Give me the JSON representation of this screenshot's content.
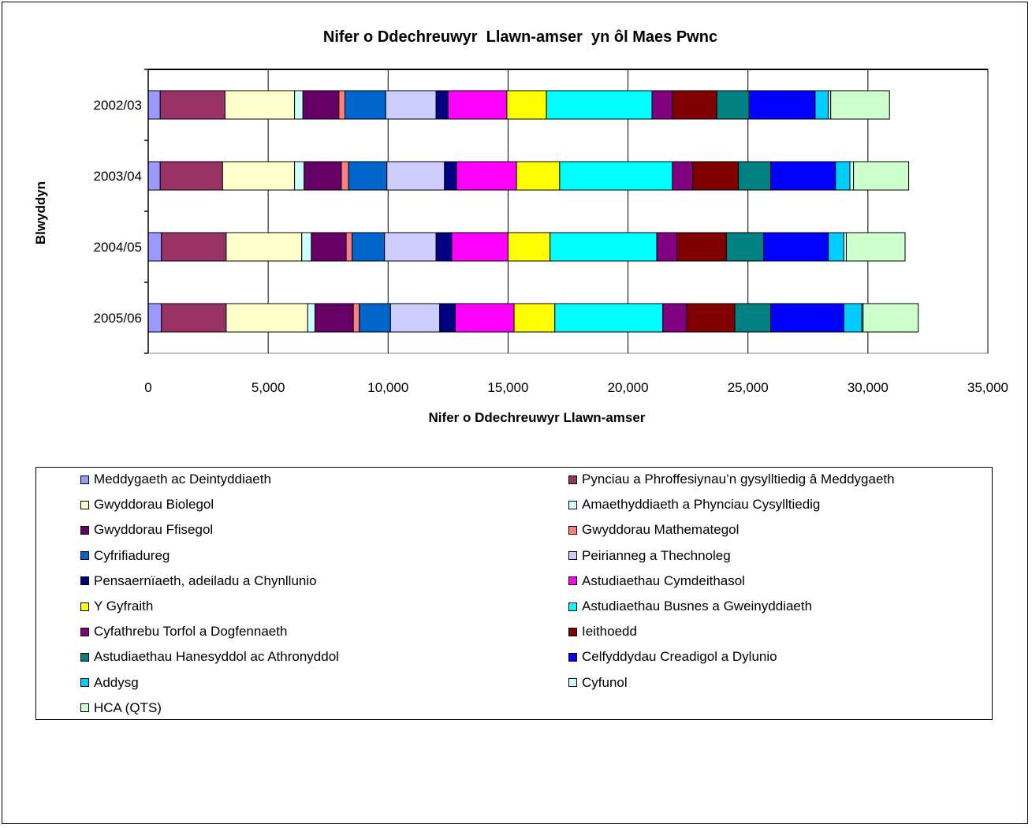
{
  "chart_data": {
    "type": "bar",
    "orientation": "horizontal",
    "stacked": true,
    "title": "Nifer o Ddechreuwyr  Llawn-amser  yn ôl Maes Pwnc",
    "xlabel": "Nifer o Ddechreuwyr Llawn-amser",
    "ylabel": "Blwyddyn",
    "xlim": [
      0,
      35000
    ],
    "xticks": [
      0,
      5000,
      10000,
      15000,
      20000,
      25000,
      30000,
      35000
    ],
    "xtick_labels": [
      "0",
      "5,000",
      "10,000",
      "15,000",
      "20,000",
      "25,000",
      "30,000",
      "35,000"
    ],
    "categories": [
      "2002/03",
      "2003/04",
      "2004/05",
      "2005/06"
    ],
    "grid": true,
    "legend_position": "bottom",
    "series": [
      {
        "name": "Meddygaeth ac Deintyddiaeth",
        "color": "#9999ff",
        "values": [
          500,
          500,
          550,
          550
        ]
      },
      {
        "name": "Pynciau a Phroffesiynau’n gysylltiedig â Meddygaeth",
        "color": "#993366",
        "values": [
          2700,
          2600,
          2700,
          2700
        ]
      },
      {
        "name": "Gwyddorau Biolegol",
        "color": "#ffffcc",
        "values": [
          2900,
          3000,
          3150,
          3400
        ]
      },
      {
        "name": "Amaethyddiaeth a Phynciau Cysylltiedig",
        "color": "#ccffff",
        "values": [
          350,
          400,
          400,
          300
        ]
      },
      {
        "name": "Gwyddorau Ffisegol",
        "color": "#660066",
        "values": [
          1500,
          1550,
          1450,
          1600
        ]
      },
      {
        "name": "Gwyddorau Mathemategol",
        "color": "#ff8080",
        "values": [
          250,
          300,
          250,
          250
        ]
      },
      {
        "name": "Cyfrifiadureg",
        "color": "#0066cc",
        "values": [
          1700,
          1600,
          1350,
          1300
        ]
      },
      {
        "name": "Peirianneg a Thechnoleg",
        "color": "#ccccff",
        "values": [
          2100,
          2400,
          2150,
          2050
        ]
      },
      {
        "name": "Pensaernïaeth, adeiladu a Chynllunio",
        "color": "#000080",
        "values": [
          500,
          500,
          650,
          650
        ]
      },
      {
        "name": "Astudiaethau Cymdeithasol",
        "color": "#ff00ff",
        "values": [
          2450,
          2500,
          2350,
          2450
        ]
      },
      {
        "name": "Y Gyfraith",
        "color": "#ffff00",
        "values": [
          1650,
          1800,
          1750,
          1700
        ]
      },
      {
        "name": "Astudiaethau Busnes a Gweinyddiaeth",
        "color": "#00ffff",
        "values": [
          4400,
          4700,
          4450,
          4500
        ]
      },
      {
        "name": "Cyfathrebu Torfol a Dogfennaeth",
        "color": "#800080",
        "values": [
          850,
          850,
          850,
          1000
        ]
      },
      {
        "name": "Ieithoedd",
        "color": "#800000",
        "values": [
          1850,
          1900,
          2050,
          2000
        ]
      },
      {
        "name": "Astudiaethau Hanesyddol ac Athronyddol",
        "color": "#008080",
        "values": [
          1350,
          1350,
          1550,
          1500
        ]
      },
      {
        "name": "Celfyddydau Creadigol a Dylunio",
        "color": "#0000ff",
        "values": [
          2750,
          2700,
          2700,
          3050
        ]
      },
      {
        "name": "Addysg",
        "color": "#00ccff",
        "values": [
          550,
          600,
          650,
          750
        ]
      },
      {
        "name": "Cyfunol",
        "color": "#ccffff",
        "values": [
          100,
          150,
          100,
          50
        ]
      },
      {
        "name": "HCA (QTS)",
        "color": "#ccffcc",
        "values": [
          2450,
          2300,
          2450,
          2300
        ]
      }
    ]
  }
}
